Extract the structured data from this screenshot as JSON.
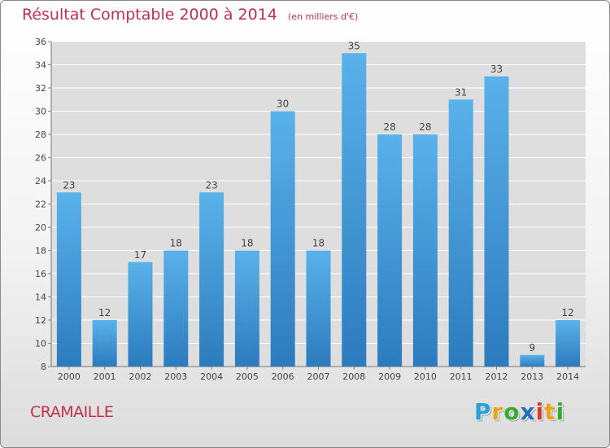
{
  "title": "Résultat Comptable 2000 à 2014",
  "subtitle": "(en milliers d'€)",
  "commune": "CRAMAILLE",
  "logo": {
    "letters": [
      "P",
      "r",
      "o",
      "x",
      "i",
      "t",
      "i"
    ],
    "colors": [
      "#2aa0d8",
      "#e8a318",
      "#3aaa35",
      "#1f72b8",
      "#d23c2c",
      "#e8a318",
      "#3aaa35"
    ]
  },
  "colors": {
    "bar_light": "#5ab2ea",
    "bar_dark": "#2c7bbe",
    "title": "#c0304e"
  },
  "chart_data": {
    "type": "bar",
    "title": "Résultat Comptable 2000 à 2014",
    "subtitle": "(en milliers d'€)",
    "categories": [
      "2000",
      "2001",
      "2002",
      "2003",
      "2004",
      "2005",
      "2006",
      "2007",
      "2008",
      "2009",
      "2010",
      "2011",
      "2012",
      "2013",
      "2014"
    ],
    "values": [
      23,
      12,
      17,
      18,
      23,
      18,
      30,
      18,
      35,
      28,
      28,
      31,
      33,
      9,
      12
    ],
    "ylim": [
      8,
      36
    ],
    "yticks": [
      8,
      10,
      12,
      14,
      16,
      18,
      20,
      22,
      24,
      26,
      28,
      30,
      32,
      34,
      36
    ],
    "grid": true,
    "data_labels": true
  }
}
